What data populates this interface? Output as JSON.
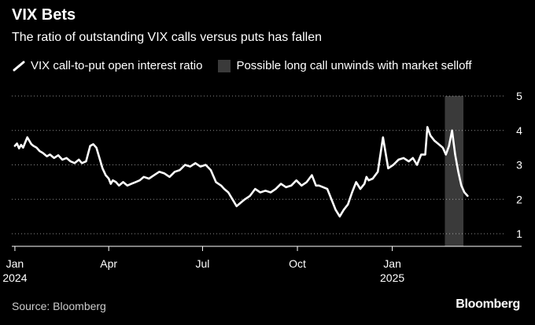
{
  "header": {
    "title": "VIX Bets",
    "subtitle": "The ratio of outstanding VIX calls versus puts has fallen"
  },
  "legend": {
    "line_label": "VIX call-to-put open interest ratio",
    "shade_label": "Possible long call unwinds with market selloff"
  },
  "footer": {
    "source": "Source: Bloomberg",
    "brand": "Bloomberg"
  },
  "colors": {
    "background": "#000000",
    "line": "#ffffff",
    "shade": "#3a3a3a",
    "grid": "#ffffff",
    "text": "#ffffff"
  },
  "chart_data": {
    "type": "line",
    "title": "VIX Bets",
    "subtitle": "The ratio of outstanding VIX calls versus puts has fallen",
    "xlabel": "",
    "ylabel": "",
    "ylim": [
      1,
      5
    ],
    "y_ticks": [
      1,
      2,
      3,
      4,
      5
    ],
    "y_axis_side": "right",
    "grid": "horizontal dotted",
    "legend_position": "top-left",
    "x_ticks": [
      {
        "date": "2024-01-01",
        "label": "Jan",
        "sublabel": "2024"
      },
      {
        "date": "2024-04-01",
        "label": "Apr",
        "sublabel": ""
      },
      {
        "date": "2024-07-01",
        "label": "Jul",
        "sublabel": ""
      },
      {
        "date": "2024-10-01",
        "label": "Oct",
        "sublabel": ""
      },
      {
        "date": "2025-01-01",
        "label": "Jan",
        "sublabel": "2025"
      }
    ],
    "x_range": [
      "2023-12-29",
      "2025-04-25"
    ],
    "shaded_regions": [
      {
        "name": "Possible long call unwinds with market selloff",
        "start": "2025-02-21",
        "end": "2025-03-11"
      }
    ],
    "series": [
      {
        "name": "VIX call-to-put open interest ratio",
        "x": [
          "2024-01-01",
          "2024-01-03",
          "2024-01-05",
          "2024-01-07",
          "2024-01-09",
          "2024-01-11",
          "2024-01-13",
          "2024-01-15",
          "2024-01-17",
          "2024-01-19",
          "2024-01-22",
          "2024-01-25",
          "2024-01-28",
          "2024-02-01",
          "2024-02-04",
          "2024-02-08",
          "2024-02-12",
          "2024-02-16",
          "2024-02-20",
          "2024-02-24",
          "2024-02-28",
          "2024-03-03",
          "2024-03-06",
          "2024-03-10",
          "2024-03-14",
          "2024-03-17",
          "2024-03-20",
          "2024-03-23",
          "2024-03-26",
          "2024-03-29",
          "2024-04-01",
          "2024-04-03",
          "2024-04-05",
          "2024-04-08",
          "2024-04-11",
          "2024-04-15",
          "2024-04-19",
          "2024-04-23",
          "2024-04-27",
          "2024-05-01",
          "2024-05-05",
          "2024-05-10",
          "2024-05-15",
          "2024-05-20",
          "2024-05-25",
          "2024-05-30",
          "2024-06-04",
          "2024-06-09",
          "2024-06-14",
          "2024-06-19",
          "2024-06-24",
          "2024-06-29",
          "2024-07-04",
          "2024-07-09",
          "2024-07-14",
          "2024-07-19",
          "2024-07-22",
          "2024-07-26",
          "2024-07-30",
          "2024-08-03",
          "2024-08-07",
          "2024-08-11",
          "2024-08-16",
          "2024-08-21",
          "2024-08-26",
          "2024-08-31",
          "2024-09-05",
          "2024-09-10",
          "2024-09-15",
          "2024-09-20",
          "2024-09-25",
          "2024-09-30",
          "2024-10-05",
          "2024-10-10",
          "2024-10-15",
          "2024-10-19",
          "2024-10-22",
          "2024-10-26",
          "2024-10-30",
          "2024-11-03",
          "2024-11-07",
          "2024-11-11",
          "2024-11-15",
          "2024-11-19",
          "2024-11-23",
          "2024-11-27",
          "2024-12-01",
          "2024-12-05",
          "2024-12-07",
          "2024-12-09",
          "2024-12-13",
          "2024-12-18",
          "2024-12-23",
          "2024-12-28",
          "2025-01-02",
          "2025-01-07",
          "2025-01-12",
          "2025-01-17",
          "2025-01-21",
          "2025-01-25",
          "2025-01-29",
          "2025-02-02",
          "2025-02-04",
          "2025-02-07",
          "2025-02-11",
          "2025-02-15",
          "2025-02-19",
          "2025-02-22",
          "2025-02-25",
          "2025-02-28",
          "2025-03-03",
          "2025-03-06",
          "2025-03-09",
          "2025-03-12",
          "2025-03-15"
        ],
        "values": [
          3.55,
          3.62,
          3.48,
          3.58,
          3.5,
          3.65,
          3.8,
          3.7,
          3.6,
          3.55,
          3.5,
          3.4,
          3.35,
          3.25,
          3.3,
          3.2,
          3.28,
          3.15,
          3.2,
          3.1,
          3.05,
          3.15,
          3.05,
          3.1,
          3.55,
          3.6,
          3.5,
          3.2,
          2.9,
          2.7,
          2.6,
          2.45,
          2.55,
          2.5,
          2.4,
          2.5,
          2.4,
          2.45,
          2.5,
          2.55,
          2.65,
          2.6,
          2.7,
          2.8,
          2.75,
          2.65,
          2.8,
          2.85,
          3.0,
          2.95,
          3.05,
          2.95,
          3.0,
          2.85,
          2.5,
          2.4,
          2.3,
          2.2,
          2.0,
          1.8,
          1.9,
          2.0,
          2.1,
          2.3,
          2.2,
          2.25,
          2.2,
          2.3,
          2.45,
          2.35,
          2.4,
          2.55,
          2.4,
          2.5,
          2.7,
          2.4,
          2.4,
          2.35,
          2.3,
          2.0,
          1.7,
          1.5,
          1.7,
          1.85,
          2.2,
          2.5,
          2.3,
          2.45,
          2.65,
          2.55,
          2.6,
          2.8,
          3.8,
          2.9,
          3.0,
          3.15,
          3.2,
          3.1,
          3.2,
          3.0,
          3.3,
          3.3,
          4.1,
          3.85,
          3.7,
          3.6,
          3.5,
          3.3,
          3.55,
          4.0,
          3.3,
          2.8,
          2.4,
          2.2,
          2.1
        ]
      }
    ]
  }
}
